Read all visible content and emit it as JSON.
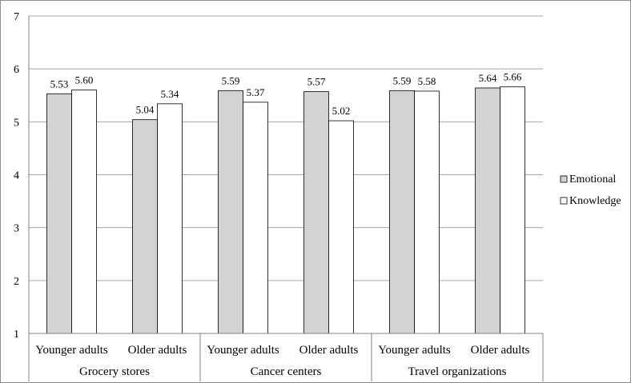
{
  "chart_data": {
    "type": "bar",
    "groups": [
      {
        "label": "Grocery stores",
        "categories": [
          "Younger adults",
          "Older adults"
        ]
      },
      {
        "label": "Cancer centers",
        "categories": [
          "Younger adults",
          "Older adults"
        ]
      },
      {
        "label": "Travel organizations",
        "categories": [
          "Younger adults",
          "Older adults"
        ]
      }
    ],
    "categories": [
      "Younger adults",
      "Older adults",
      "Younger adults",
      "Older adults",
      "Younger adults",
      "Older adults"
    ],
    "series": [
      {
        "name": "Emotional",
        "color": "#d3d3d3",
        "values": [
          5.53,
          5.04,
          5.59,
          5.57,
          5.59,
          5.64
        ],
        "labels": [
          "5.53",
          "5.04",
          "5.59",
          "5.57",
          "5.59",
          "5.64"
        ]
      },
      {
        "name": "Knowledge",
        "color": "#ffffff",
        "values": [
          5.6,
          5.34,
          5.37,
          5.02,
          5.58,
          5.66
        ],
        "labels": [
          "5.60",
          "5.34",
          "5.37",
          "5.02",
          "5.58",
          "5.66"
        ]
      }
    ],
    "ylim": [
      1,
      7
    ],
    "yticks": [
      1,
      2,
      3,
      4,
      5,
      6,
      7
    ],
    "grid": true,
    "legend_position": "right",
    "title": "",
    "xlabel": "",
    "ylabel": ""
  }
}
